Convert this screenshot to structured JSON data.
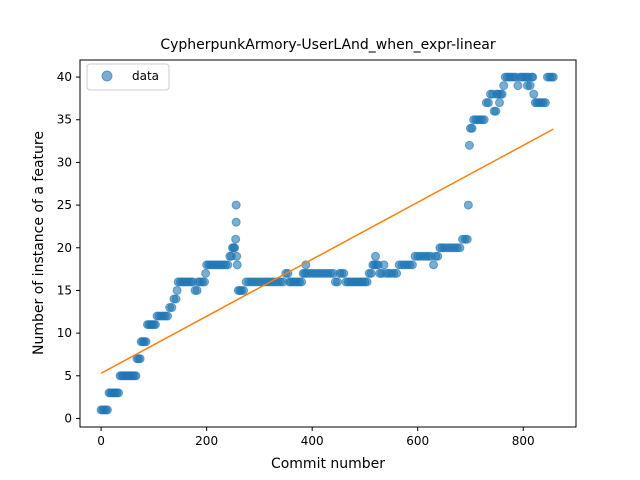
{
  "chart_data": {
    "type": "scatter",
    "title": "CypherpunkArmory-UserLAnd_when_expr-linear",
    "xlabel": "Commit number",
    "ylabel": "Number of instance of a feature",
    "xlim": [
      -40,
      900
    ],
    "ylim": [
      -1.0,
      42.0
    ],
    "xticks": [
      0,
      200,
      400,
      600,
      800
    ],
    "yticks": [
      0,
      5,
      10,
      15,
      20,
      25,
      30,
      35,
      40
    ],
    "grid": false,
    "legend": {
      "placement": "top-left",
      "entries": [
        "data"
      ]
    },
    "colors": {
      "data": "#1f77b4",
      "fit": "#ff7f0e"
    },
    "series": [
      {
        "name": "data",
        "kind": "scatter",
        "points": [
          [
            0,
            1
          ],
          [
            3,
            1
          ],
          [
            6,
            1
          ],
          [
            9,
            1
          ],
          [
            12,
            1
          ],
          [
            15,
            3
          ],
          [
            18,
            3
          ],
          [
            21,
            3
          ],
          [
            24,
            3
          ],
          [
            27,
            3
          ],
          [
            30,
            3
          ],
          [
            33,
            3
          ],
          [
            36,
            5
          ],
          [
            39,
            5
          ],
          [
            42,
            5
          ],
          [
            45,
            5
          ],
          [
            48,
            5
          ],
          [
            51,
            5
          ],
          [
            54,
            5
          ],
          [
            57,
            5
          ],
          [
            60,
            5
          ],
          [
            63,
            5
          ],
          [
            66,
            5
          ],
          [
            68,
            7
          ],
          [
            71,
            7
          ],
          [
            74,
            7
          ],
          [
            76,
            9
          ],
          [
            79,
            9
          ],
          [
            82,
            9
          ],
          [
            85,
            9
          ],
          [
            88,
            11
          ],
          [
            91,
            11
          ],
          [
            94,
            11
          ],
          [
            97,
            11
          ],
          [
            100,
            11
          ],
          [
            103,
            11
          ],
          [
            106,
            12
          ],
          [
            110,
            12
          ],
          [
            114,
            12
          ],
          [
            118,
            12
          ],
          [
            122,
            12
          ],
          [
            126,
            12
          ],
          [
            130,
            13
          ],
          [
            134,
            13
          ],
          [
            138,
            14
          ],
          [
            142,
            14
          ],
          [
            144,
            15
          ],
          [
            146,
            16
          ],
          [
            150,
            16
          ],
          [
            154,
            16
          ],
          [
            158,
            16
          ],
          [
            162,
            16
          ],
          [
            166,
            16
          ],
          [
            170,
            16
          ],
          [
            174,
            16
          ],
          [
            178,
            15
          ],
          [
            182,
            15
          ],
          [
            184,
            16
          ],
          [
            188,
            16
          ],
          [
            192,
            16
          ],
          [
            196,
            16
          ],
          [
            198,
            17
          ],
          [
            200,
            18
          ],
          [
            204,
            18
          ],
          [
            208,
            18
          ],
          [
            212,
            18
          ],
          [
            216,
            18
          ],
          [
            220,
            18
          ],
          [
            224,
            18
          ],
          [
            228,
            18
          ],
          [
            232,
            18
          ],
          [
            236,
            18
          ],
          [
            240,
            18
          ],
          [
            244,
            19
          ],
          [
            247,
            19
          ],
          [
            249,
            20
          ],
          [
            251,
            20
          ],
          [
            253,
            20
          ],
          [
            255,
            21
          ],
          [
            256,
            23
          ],
          [
            256,
            25
          ],
          [
            257,
            19
          ],
          [
            258,
            18
          ],
          [
            260,
            15
          ],
          [
            263,
            15
          ],
          [
            266,
            15
          ],
          [
            270,
            15
          ],
          [
            275,
            16
          ],
          [
            280,
            16
          ],
          [
            285,
            16
          ],
          [
            290,
            16
          ],
          [
            295,
            16
          ],
          [
            300,
            16
          ],
          [
            305,
            16
          ],
          [
            310,
            16
          ],
          [
            315,
            16
          ],
          [
            320,
            16
          ],
          [
            325,
            16
          ],
          [
            330,
            16
          ],
          [
            335,
            16
          ],
          [
            340,
            16
          ],
          [
            345,
            16
          ],
          [
            350,
            17
          ],
          [
            354,
            17
          ],
          [
            357,
            16
          ],
          [
            360,
            16
          ],
          [
            364,
            16
          ],
          [
            368,
            16
          ],
          [
            372,
            16
          ],
          [
            376,
            16
          ],
          [
            380,
            16
          ],
          [
            383,
            17
          ],
          [
            386,
            17
          ],
          [
            388,
            18
          ],
          [
            390,
            17
          ],
          [
            395,
            17
          ],
          [
            400,
            17
          ],
          [
            405,
            17
          ],
          [
            410,
            17
          ],
          [
            415,
            17
          ],
          [
            420,
            17
          ],
          [
            425,
            17
          ],
          [
            430,
            17
          ],
          [
            435,
            17
          ],
          [
            440,
            17
          ],
          [
            444,
            16
          ],
          [
            448,
            16
          ],
          [
            452,
            17
          ],
          [
            456,
            17
          ],
          [
            460,
            17
          ],
          [
            464,
            16
          ],
          [
            468,
            16
          ],
          [
            472,
            16
          ],
          [
            476,
            16
          ],
          [
            480,
            16
          ],
          [
            484,
            16
          ],
          [
            488,
            16
          ],
          [
            492,
            16
          ],
          [
            496,
            16
          ],
          [
            500,
            16
          ],
          [
            504,
            16
          ],
          [
            508,
            17
          ],
          [
            512,
            17
          ],
          [
            515,
            18
          ],
          [
            518,
            18
          ],
          [
            520,
            19
          ],
          [
            522,
            18
          ],
          [
            525,
            18
          ],
          [
            528,
            17
          ],
          [
            532,
            17
          ],
          [
            536,
            18
          ],
          [
            540,
            17
          ],
          [
            545,
            17
          ],
          [
            550,
            17
          ],
          [
            555,
            17
          ],
          [
            560,
            17
          ],
          [
            565,
            18
          ],
          [
            570,
            18
          ],
          [
            575,
            18
          ],
          [
            580,
            18
          ],
          [
            585,
            18
          ],
          [
            590,
            18
          ],
          [
            595,
            19
          ],
          [
            600,
            19
          ],
          [
            605,
            19
          ],
          [
            610,
            19
          ],
          [
            615,
            19
          ],
          [
            620,
            19
          ],
          [
            625,
            19
          ],
          [
            630,
            18
          ],
          [
            634,
            19
          ],
          [
            638,
            19
          ],
          [
            642,
            20
          ],
          [
            646,
            20
          ],
          [
            650,
            20
          ],
          [
            655,
            20
          ],
          [
            660,
            20
          ],
          [
            665,
            20
          ],
          [
            670,
            20
          ],
          [
            675,
            20
          ],
          [
            680,
            20
          ],
          [
            685,
            21
          ],
          [
            690,
            21
          ],
          [
            694,
            21
          ],
          [
            696,
            25
          ],
          [
            698,
            32
          ],
          [
            700,
            34
          ],
          [
            703,
            34
          ],
          [
            706,
            35
          ],
          [
            710,
            35
          ],
          [
            714,
            35
          ],
          [
            718,
            35
          ],
          [
            722,
            35
          ],
          [
            726,
            35
          ],
          [
            730,
            37
          ],
          [
            734,
            37
          ],
          [
            738,
            38
          ],
          [
            742,
            38
          ],
          [
            745,
            36
          ],
          [
            748,
            36
          ],
          [
            750,
            38
          ],
          [
            752,
            38
          ],
          [
            755,
            37
          ],
          [
            757,
            38
          ],
          [
            760,
            38
          ],
          [
            763,
            39
          ],
          [
            766,
            40
          ],
          [
            770,
            40
          ],
          [
            774,
            40
          ],
          [
            778,
            40
          ],
          [
            782,
            40
          ],
          [
            786,
            40
          ],
          [
            790,
            39
          ],
          [
            794,
            40
          ],
          [
            798,
            40
          ],
          [
            802,
            40
          ],
          [
            806,
            40
          ],
          [
            808,
            39
          ],
          [
            810,
            40
          ],
          [
            813,
            39
          ],
          [
            816,
            40
          ],
          [
            818,
            40
          ],
          [
            820,
            38
          ],
          [
            823,
            37
          ],
          [
            826,
            37
          ],
          [
            830,
            37
          ],
          [
            834,
            37
          ],
          [
            838,
            37
          ],
          [
            842,
            37
          ],
          [
            846,
            40
          ],
          [
            850,
            40
          ],
          [
            854,
            40
          ],
          [
            857,
            40
          ]
        ]
      },
      {
        "name": "",
        "kind": "line",
        "points": [
          [
            0,
            5.3
          ],
          [
            857,
            33.9
          ]
        ]
      }
    ]
  }
}
